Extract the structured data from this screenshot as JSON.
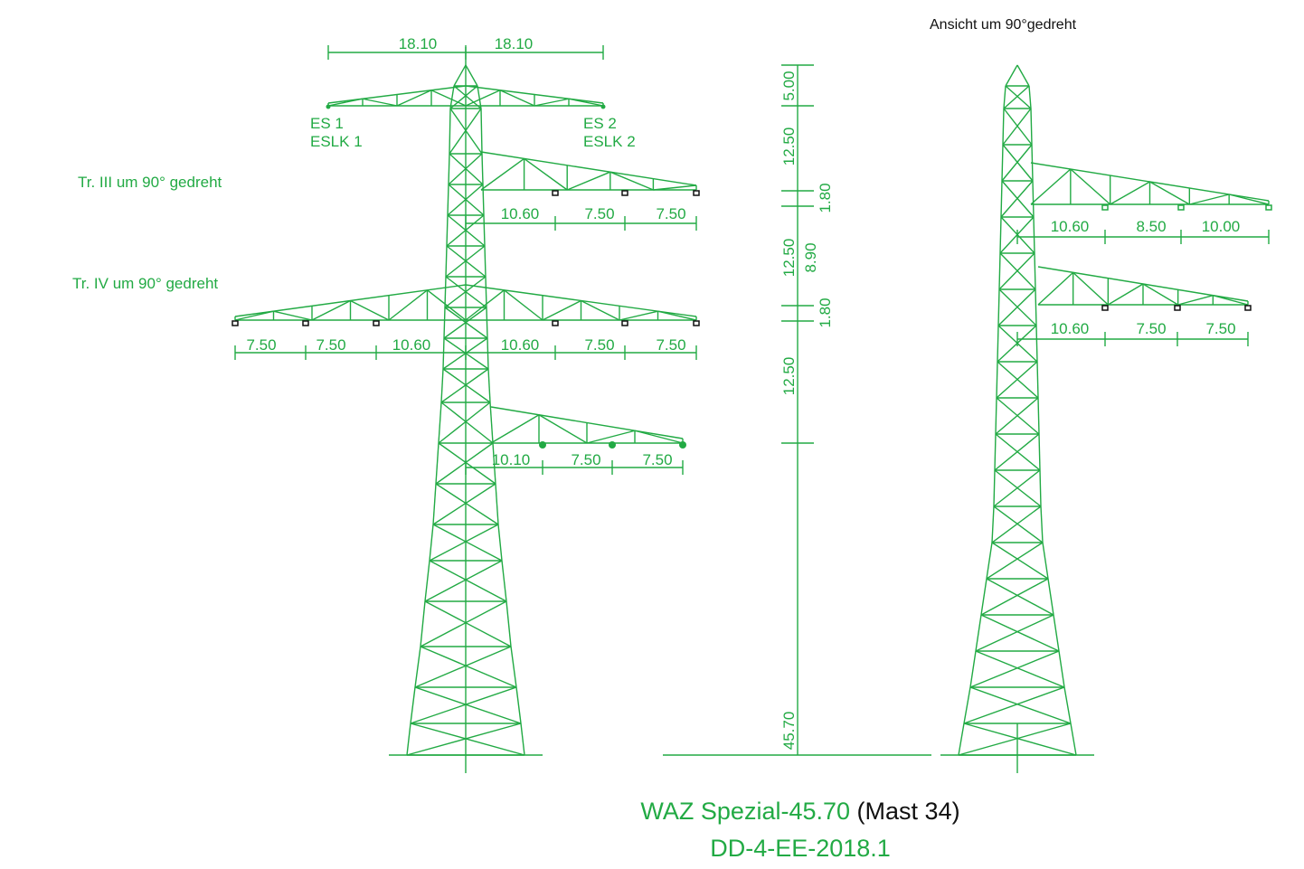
{
  "side_view_label": "Ansicht um 90°gedreht",
  "front_view": {
    "top_dims": [
      "18.10",
      "18.10"
    ],
    "earth_wires": [
      {
        "line1": "ES 1",
        "line2": "ESLK 1"
      },
      {
        "line1": "ES 2",
        "line2": "ESLK 2"
      }
    ],
    "crossarm_notes": [
      "Tr. III um 90° gedreht",
      "Tr. IV um 90° gedreht"
    ],
    "arm_dims": {
      "arm1": [
        "10.60",
        "7.50",
        "7.50"
      ],
      "arm2_left": [
        "7.50",
        "7.50",
        "10.60"
      ],
      "arm2_right": [
        "10.60",
        "7.50",
        "7.50"
      ],
      "arm3": [
        "10.10",
        "7.50",
        "7.50"
      ]
    }
  },
  "height_dims": {
    "left": [
      "5.00",
      "12.50",
      "12.50",
      "12.50",
      "45.70"
    ],
    "right": [
      "1.80",
      "8.90",
      "1.80"
    ]
  },
  "side_view": {
    "arm1": [
      "10.60",
      "8.50",
      "10.00"
    ],
    "arm2": [
      "10.60",
      "7.50",
      "7.50"
    ]
  },
  "title": {
    "name": "WAZ Spezial-45.70",
    "mast": "(Mast 34)",
    "code": "DD-4-EE-2018.1"
  }
}
